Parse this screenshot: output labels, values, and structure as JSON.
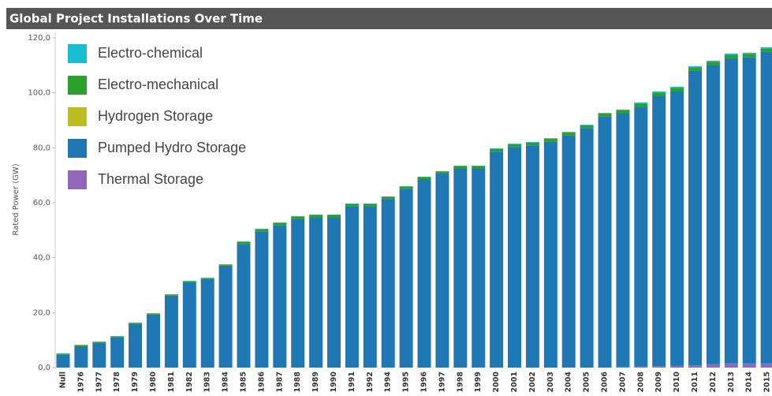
{
  "chart_data": {
    "type": "stacked-bar",
    "title": "Global Project Installations Over Time",
    "y_label": "Rated Power (GW)",
    "categories": [
      "Null",
      "1976",
      "1977",
      "1978",
      "1979",
      "1980",
      "1981",
      "1982",
      "1983",
      "1984",
      "1985",
      "1986",
      "1987",
      "1988",
      "1989",
      "1990",
      "1991",
      "1992",
      "1994",
      "1995",
      "1996",
      "1997",
      "1998",
      "1999",
      "2000",
      "2001",
      "2002",
      "2003",
      "2004",
      "2005",
      "2006",
      "2007",
      "2008",
      "2009",
      "2010",
      "2011",
      "2012",
      "2013",
      "2014",
      "2015"
    ],
    "series": [
      {
        "name": "Electro-chemical",
        "color": "#17becf",
        "values": [
          0.1,
          0.1,
          0.1,
          0.1,
          0.1,
          0.1,
          0.1,
          0.1,
          0.1,
          0.1,
          0.1,
          0.1,
          0.1,
          0.1,
          0.1,
          0.1,
          0.1,
          0.1,
          0.1,
          0.1,
          0.1,
          0.1,
          0.1,
          0.1,
          0.2,
          0.2,
          0.2,
          0.2,
          0.2,
          0.2,
          0.2,
          0.2,
          0.4,
          0.4,
          0.4,
          0.4,
          0.4,
          0.4,
          0.4,
          0.4
        ]
      },
      {
        "name": "Electro-mechanical",
        "color": "#2ca02c",
        "values": [
          0.4,
          0.4,
          0.4,
          0.4,
          0.4,
          0.4,
          0.4,
          0.4,
          0.4,
          0.4,
          0.8,
          0.8,
          0.8,
          0.8,
          0.8,
          0.8,
          0.8,
          0.8,
          0.8,
          0.8,
          0.8,
          0.8,
          0.8,
          0.8,
          1.0,
          1.0,
          1.0,
          1.0,
          1.0,
          1.0,
          1.0,
          1.0,
          1.2,
          1.2,
          1.2,
          1.2,
          1.2,
          1.2,
          1.2,
          1.2
        ]
      },
      {
        "name": "Hydrogen Storage",
        "color": "#bcbd22",
        "values": [
          0,
          0,
          0,
          0,
          0,
          0,
          0,
          0,
          0,
          0,
          0,
          0,
          0,
          0,
          0,
          0,
          0,
          0,
          0,
          0,
          0,
          0,
          0,
          0,
          0,
          0,
          0,
          0,
          0,
          0,
          0,
          0,
          0,
          0,
          0,
          0,
          0,
          0,
          0,
          0
        ]
      },
      {
        "name": "Pumped Hydro Storage",
        "color": "#1f77b4",
        "values": [
          4.7,
          7.8,
          9.0,
          11.0,
          15.9,
          19.3,
          26.2,
          31.1,
          32.2,
          37.1,
          45.0,
          49.6,
          51.9,
          54.2,
          54.8,
          54.8,
          58.8,
          58.8,
          61.4,
          65.1,
          68.6,
          70.6,
          72.6,
          72.6,
          78.6,
          80.3,
          80.9,
          82.3,
          84.6,
          87.2,
          91.5,
          92.4,
          94.5,
          98.4,
          100.0,
          107.3,
          108.8,
          111.2,
          111.5,
          113.5
        ]
      },
      {
        "name": "Thermal Storage",
        "color": "#9467bd",
        "values": [
          0,
          0,
          0,
          0,
          0,
          0,
          0,
          0,
          0,
          0,
          0,
          0,
          0,
          0,
          0,
          0,
          0,
          0,
          0,
          0,
          0,
          0,
          0,
          0,
          0,
          0,
          0,
          0,
          0,
          0,
          0,
          0.3,
          0.4,
          0.5,
          0.6,
          0.8,
          1.3,
          1.5,
          1.5,
          1.5
        ]
      }
    ],
    "ylim": [
      0,
      122
    ],
    "yticks": [
      {
        "value": 0,
        "label": "0,0"
      },
      {
        "value": 20,
        "label": "20,0"
      },
      {
        "value": 40,
        "label": "40,0"
      },
      {
        "value": 60,
        "label": "60,0"
      },
      {
        "value": 80,
        "label": "80,0"
      },
      {
        "value": 100,
        "label": "100,0"
      },
      {
        "value": 120,
        "label": "120,0"
      }
    ],
    "grid": false
  }
}
